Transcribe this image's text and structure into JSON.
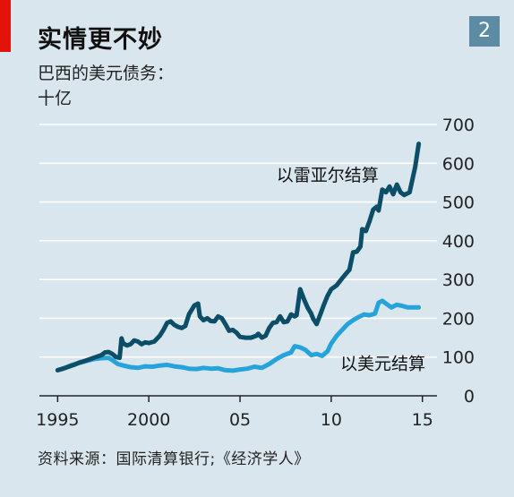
{
  "header": {
    "title": "实情更不妙",
    "badge": "2"
  },
  "subtitle": {
    "line1": "巴西的美元债务：",
    "line2": "十亿"
  },
  "source": "资料来源：国际清算银行;《经济学人》",
  "chart_data": {
    "type": "line",
    "title": "实情更不妙",
    "ylabel": "十亿",
    "xlim": [
      1994.0,
      2015.8
    ],
    "ylim": [
      0,
      700
    ],
    "yticks": [
      0,
      100,
      200,
      300,
      400,
      500,
      600,
      700
    ],
    "xticks": [
      {
        "value": 1995,
        "label": "1995"
      },
      {
        "value": 2000,
        "label": "2000"
      },
      {
        "value": 2005,
        "label": "05"
      },
      {
        "value": 2010,
        "label": "10"
      },
      {
        "value": 2015,
        "label": "15"
      }
    ],
    "grid": true,
    "colors": {
      "dark": "#0c4e68",
      "light": "#27a3dc"
    },
    "series": [
      {
        "name": "以雷亚尔结算",
        "color": "#0c4e68",
        "label_anchor": [
          2007.0,
          555
        ],
        "points": [
          [
            1995.0,
            66
          ],
          [
            1995.3,
            70
          ],
          [
            1995.6,
            75
          ],
          [
            1995.9,
            80
          ],
          [
            1996.2,
            86
          ],
          [
            1996.5,
            90
          ],
          [
            1996.8,
            95
          ],
          [
            1997.1,
            100
          ],
          [
            1997.4,
            105
          ],
          [
            1997.6,
            112
          ],
          [
            1997.8,
            113
          ],
          [
            1998.0,
            108
          ],
          [
            1998.2,
            100
          ],
          [
            1998.4,
            98
          ],
          [
            1998.5,
            148
          ],
          [
            1998.6,
            135
          ],
          [
            1998.8,
            130
          ],
          [
            1999.0,
            133
          ],
          [
            1999.2,
            143
          ],
          [
            1999.4,
            140
          ],
          [
            1999.6,
            133
          ],
          [
            1999.8,
            138
          ],
          [
            2000.0,
            136
          ],
          [
            2000.3,
            140
          ],
          [
            2000.6,
            155
          ],
          [
            2000.8,
            170
          ],
          [
            2001.0,
            188
          ],
          [
            2001.2,
            192
          ],
          [
            2001.4,
            183
          ],
          [
            2001.6,
            178
          ],
          [
            2001.8,
            175
          ],
          [
            2002.0,
            180
          ],
          [
            2002.2,
            210
          ],
          [
            2002.5,
            233
          ],
          [
            2002.7,
            238
          ],
          [
            2002.8,
            205
          ],
          [
            2003.0,
            195
          ],
          [
            2003.2,
            200
          ],
          [
            2003.4,
            193
          ],
          [
            2003.6,
            192
          ],
          [
            2003.8,
            205
          ],
          [
            2004.0,
            200
          ],
          [
            2004.2,
            185
          ],
          [
            2004.4,
            168
          ],
          [
            2004.6,
            170
          ],
          [
            2004.8,
            163
          ],
          [
            2005.0,
            152
          ],
          [
            2005.3,
            150
          ],
          [
            2005.6,
            150
          ],
          [
            2005.9,
            155
          ],
          [
            2006.0,
            160
          ],
          [
            2006.2,
            150
          ],
          [
            2006.4,
            155
          ],
          [
            2006.6,
            175
          ],
          [
            2006.8,
            188
          ],
          [
            2007.0,
            190
          ],
          [
            2007.2,
            205
          ],
          [
            2007.4,
            190
          ],
          [
            2007.6,
            192
          ],
          [
            2007.8,
            210
          ],
          [
            2008.0,
            205
          ],
          [
            2008.1,
            208
          ],
          [
            2008.3,
            275
          ],
          [
            2008.5,
            250
          ],
          [
            2008.7,
            228
          ],
          [
            2008.9,
            212
          ],
          [
            2009.0,
            200
          ],
          [
            2009.2,
            185
          ],
          [
            2009.4,
            210
          ],
          [
            2009.6,
            235
          ],
          [
            2009.8,
            258
          ],
          [
            2010.0,
            275
          ],
          [
            2010.3,
            285
          ],
          [
            2010.6,
            303
          ],
          [
            2010.9,
            320
          ],
          [
            2011.0,
            325
          ],
          [
            2011.2,
            370
          ],
          [
            2011.4,
            372
          ],
          [
            2011.6,
            385
          ],
          [
            2011.7,
            430
          ],
          [
            2011.9,
            425
          ],
          [
            2012.1,
            450
          ],
          [
            2012.3,
            480
          ],
          [
            2012.5,
            488
          ],
          [
            2012.6,
            478
          ],
          [
            2012.8,
            532
          ],
          [
            2013.0,
            525
          ],
          [
            2013.2,
            540
          ],
          [
            2013.4,
            520
          ],
          [
            2013.6,
            545
          ],
          [
            2013.8,
            525
          ],
          [
            2014.0,
            518
          ],
          [
            2014.3,
            525
          ],
          [
            2014.6,
            590
          ],
          [
            2014.8,
            650
          ]
        ]
      },
      {
        "name": "以美元结算",
        "color": "#27a3dc",
        "label_anchor": [
          2010.5,
          68
        ],
        "points": [
          [
            1995.0,
            66
          ],
          [
            1995.4,
            72
          ],
          [
            1995.8,
            80
          ],
          [
            1996.2,
            85
          ],
          [
            1996.6,
            90
          ],
          [
            1997.0,
            95
          ],
          [
            1997.4,
            97
          ],
          [
            1997.8,
            98
          ],
          [
            1998.0,
            92
          ],
          [
            1998.3,
            82
          ],
          [
            1998.6,
            78
          ],
          [
            1999.0,
            74
          ],
          [
            1999.4,
            72
          ],
          [
            1999.8,
            76
          ],
          [
            2000.2,
            75
          ],
          [
            2000.6,
            78
          ],
          [
            2001.0,
            80
          ],
          [
            2001.4,
            76
          ],
          [
            2001.8,
            74
          ],
          [
            2002.2,
            70
          ],
          [
            2002.6,
            69
          ],
          [
            2003.0,
            72
          ],
          [
            2003.4,
            70
          ],
          [
            2003.8,
            71
          ],
          [
            2004.2,
            66
          ],
          [
            2004.6,
            65
          ],
          [
            2005.0,
            68
          ],
          [
            2005.4,
            70
          ],
          [
            2005.8,
            75
          ],
          [
            2006.2,
            72
          ],
          [
            2006.6,
            82
          ],
          [
            2007.0,
            95
          ],
          [
            2007.4,
            105
          ],
          [
            2007.8,
            112
          ],
          [
            2008.0,
            128
          ],
          [
            2008.3,
            125
          ],
          [
            2008.6,
            118
          ],
          [
            2008.9,
            105
          ],
          [
            2009.2,
            108
          ],
          [
            2009.5,
            103
          ],
          [
            2009.8,
            115
          ],
          [
            2010.0,
            135
          ],
          [
            2010.3,
            155
          ],
          [
            2010.6,
            170
          ],
          [
            2010.9,
            185
          ],
          [
            2011.2,
            195
          ],
          [
            2011.5,
            203
          ],
          [
            2011.8,
            210
          ],
          [
            2012.1,
            208
          ],
          [
            2012.4,
            212
          ],
          [
            2012.6,
            240
          ],
          [
            2012.8,
            245
          ],
          [
            2013.0,
            238
          ],
          [
            2013.3,
            228
          ],
          [
            2013.6,
            235
          ],
          [
            2013.9,
            232
          ],
          [
            2014.2,
            228
          ],
          [
            2014.6,
            228
          ],
          [
            2014.8,
            228
          ]
        ]
      }
    ]
  }
}
